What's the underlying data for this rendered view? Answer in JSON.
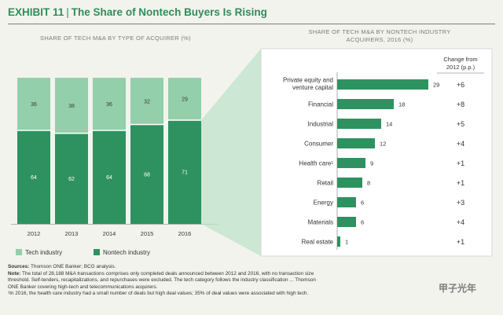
{
  "header": {
    "exhibit": "EXHIBIT 11",
    "separator": "|",
    "title": "The Share of Nontech Buyers Is Rising"
  },
  "colors": {
    "accent": "#2f8d5a",
    "dark_green": "#2e9260",
    "light_green": "#93cfaa",
    "separator_white": "#ffffff",
    "callout": "#bfe3c9"
  },
  "chart_data": [
    {
      "type": "bar",
      "stacked": true,
      "title": "SHARE OF TECH M&A BY TYPE OF ACQUIRER (%)",
      "categories": [
        "2012",
        "2013",
        "2014",
        "2015",
        "2016"
      ],
      "series": [
        {
          "name": "Nontech industry",
          "values": [
            64,
            62,
            64,
            68,
            71
          ]
        },
        {
          "name": "Tech industry",
          "values": [
            36,
            38,
            36,
            32,
            29
          ]
        }
      ],
      "ylim": [
        0,
        100
      ],
      "grid": false,
      "legend": "bottom-left"
    },
    {
      "type": "bar",
      "orientation": "horizontal",
      "title": "SHARE OF TECH M&A BY NONTECH INDUSTRY ACQUIRERS, 2016 (%)",
      "categories": [
        "Private equity and venture capital",
        "Financial",
        "Industrial",
        "Consumer",
        "Health care¹",
        "Retail",
        "Energy",
        "Materials",
        "Real estate"
      ],
      "values": [
        29,
        18,
        14,
        12,
        9,
        8,
        6,
        6,
        1
      ],
      "change_header": "Change from 2012 (p.p.)",
      "change_values": [
        "+6",
        "+8",
        "+5",
        "+4",
        "+1",
        "+1",
        "+3",
        "+4",
        "+1"
      ],
      "xlim": [
        0,
        29
      ],
      "grid": false
    }
  ],
  "legend": {
    "tech": "Tech industry",
    "nontech": "Nontech industry"
  },
  "notes": {
    "sources_label": "Sources:",
    "sources_text": " Thomson ONE Banker; BCG analysis.",
    "note_label": "Note:",
    "note_line1": " The total of 28,188 M&A transactions comprises only completed deals announced between 2012 and 2016, with no transaction size",
    "note_line2": "threshold. Self-tenders, recapitalizations, and repurchases were excluded. The tech category follows the industry classification ... Thomson",
    "note_line3": "ONE Banker covering high-tech and telecommunications acquirers.",
    "footnote": "¹In 2016, the health care industry had a small number of deals but high deal values; 35% of deal values were associated with high tech."
  },
  "watermark": "甲子光年"
}
